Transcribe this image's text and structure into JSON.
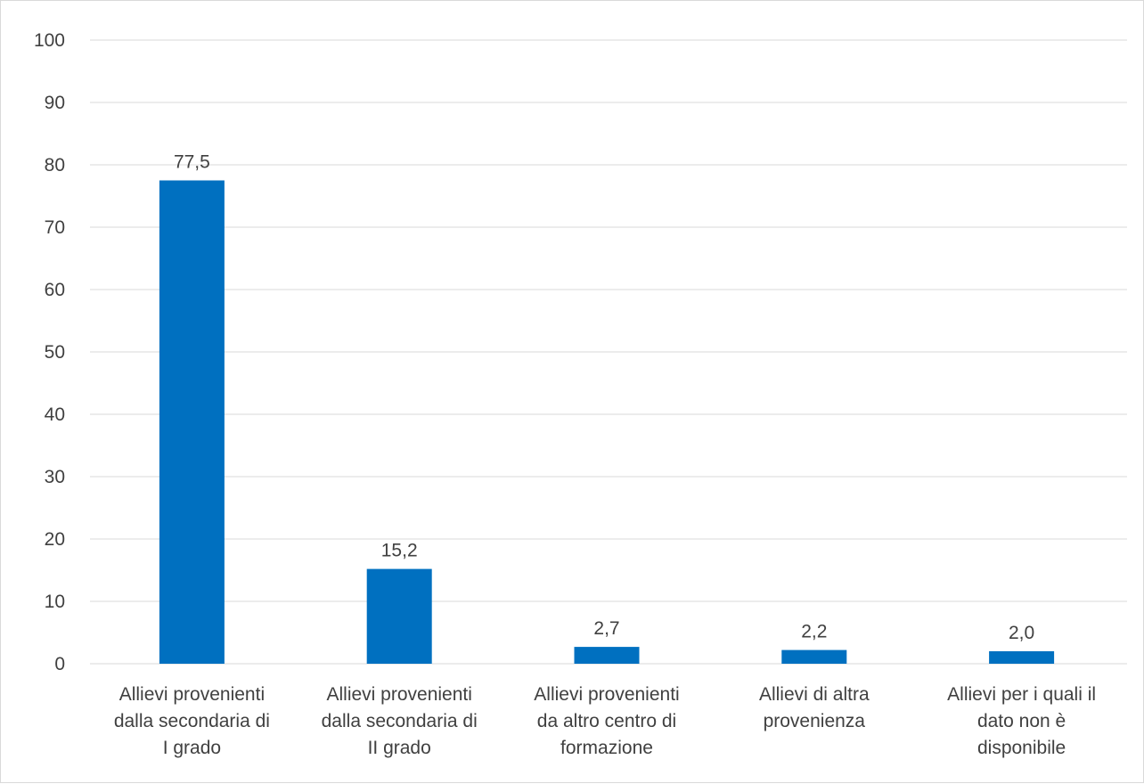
{
  "chart_data": {
    "type": "bar",
    "categories": [
      [
        "Allievi provenienti",
        "dalla secondaria di",
        "I grado"
      ],
      [
        "Allievi provenienti",
        "dalla secondaria di",
        "II grado"
      ],
      [
        "Allievi provenienti",
        "da altro centro di",
        "formazione"
      ],
      [
        "Allievi di altra",
        "provenienza"
      ],
      [
        "Allievi per i quali il",
        "dato non è",
        "disponibile"
      ]
    ],
    "values": [
      77.5,
      15.2,
      2.7,
      2.2,
      2.0
    ],
    "data_labels": [
      "77,5",
      "15,2",
      "2,7",
      "2,2",
      "2,0"
    ],
    "yticks": [
      "0",
      "10",
      "20",
      "30",
      "40",
      "50",
      "60",
      "70",
      "80",
      "90",
      "100"
    ],
    "ylim": [
      0,
      100
    ],
    "grid": true,
    "legend": "none",
    "bar_color": "#0070c0",
    "grid_color": "#d9d9d9",
    "text_color": "#404040"
  }
}
